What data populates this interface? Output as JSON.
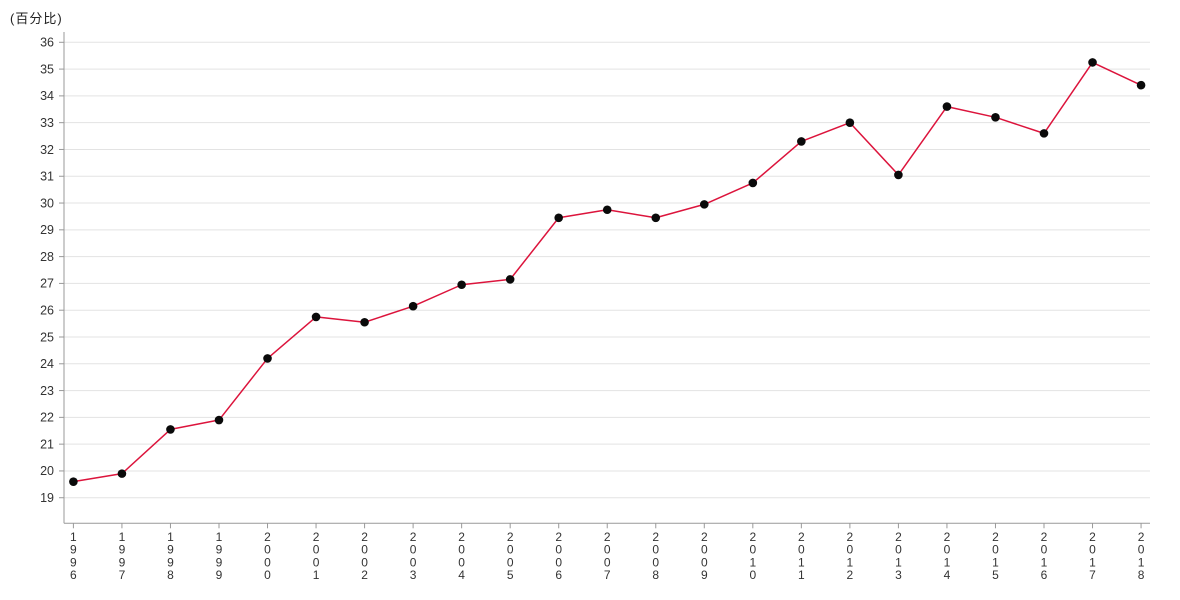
{
  "chart_data": {
    "type": "line",
    "title": "",
    "unit_label": "(百分比)",
    "xlabel": "",
    "ylabel": "(百分比)",
    "categories": [
      "1996",
      "1997",
      "1998",
      "1999",
      "2000",
      "2001",
      "2002",
      "2003",
      "2004",
      "2005",
      "2006",
      "2007",
      "2008",
      "2009",
      "2010",
      "2011",
      "2012",
      "2013",
      "2014",
      "2015",
      "2016",
      "2017",
      "2018"
    ],
    "series": [
      {
        "name": "percentage",
        "values": [
          19.6,
          19.9,
          21.55,
          21.9,
          24.2,
          25.75,
          25.55,
          26.15,
          26.95,
          27.15,
          29.45,
          29.75,
          29.45,
          29.95,
          30.75,
          32.3,
          33.0,
          31.05,
          33.6,
          33.2,
          32.6,
          35.25,
          34.4
        ]
      }
    ],
    "y_ticks": [
      19,
      20,
      21,
      22,
      23,
      24,
      25,
      26,
      27,
      28,
      29,
      30,
      31,
      32,
      33,
      34,
      35,
      36
    ],
    "ylim": [
      18.1,
      36.4
    ],
    "grid": true,
    "legend": false,
    "colors": {
      "line": "#dc143c",
      "marker": "#0a0a0a",
      "grid": "#e3e3e3",
      "axis": "#999999",
      "tick_text": "#333333"
    }
  }
}
